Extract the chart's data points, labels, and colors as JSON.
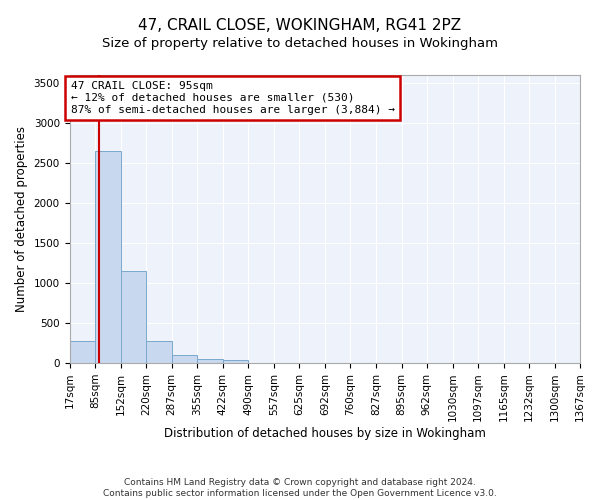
{
  "title": "47, CRAIL CLOSE, WOKINGHAM, RG41 2PZ",
  "subtitle": "Size of property relative to detached houses in Wokingham",
  "xlabel": "Distribution of detached houses by size in Wokingham",
  "ylabel": "Number of detached properties",
  "bar_color": "#c8d8ee",
  "bar_edge_color": "#7aa8cc",
  "background_color": "#edf2fb",
  "grid_color": "#ffffff",
  "vline_value": 95,
  "vline_color": "#cc0000",
  "annotation_text": "47 CRAIL CLOSE: 95sqm\n← 12% of detached houses are smaller (530)\n87% of semi-detached houses are larger (3,884) →",
  "annotation_box_color": "#cc0000",
  "bin_edges": [
    17,
    85,
    152,
    220,
    287,
    355,
    422,
    490,
    557,
    625,
    692,
    760,
    827,
    895,
    962,
    1030,
    1097,
    1165,
    1232,
    1300,
    1367
  ],
  "bin_labels": [
    "17sqm",
    "85sqm",
    "152sqm",
    "220sqm",
    "287sqm",
    "355sqm",
    "422sqm",
    "490sqm",
    "557sqm",
    "625sqm",
    "692sqm",
    "760sqm",
    "827sqm",
    "895sqm",
    "962sqm",
    "1030sqm",
    "1097sqm",
    "1165sqm",
    "1232sqm",
    "1300sqm",
    "1367sqm"
  ],
  "bar_heights": [
    270,
    2650,
    1150,
    280,
    95,
    45,
    35,
    0,
    0,
    0,
    0,
    0,
    0,
    0,
    0,
    0,
    0,
    0,
    0,
    0
  ],
  "ylim": [
    0,
    3600
  ],
  "yticks": [
    0,
    500,
    1000,
    1500,
    2000,
    2500,
    3000,
    3500
  ],
  "footer_text": "Contains HM Land Registry data © Crown copyright and database right 2024.\nContains public sector information licensed under the Open Government Licence v3.0.",
  "title_fontsize": 11,
  "subtitle_fontsize": 9.5,
  "tick_fontsize": 7.5,
  "ylabel_fontsize": 8.5,
  "xlabel_fontsize": 8.5,
  "footer_fontsize": 6.5,
  "annotation_fontsize": 8
}
